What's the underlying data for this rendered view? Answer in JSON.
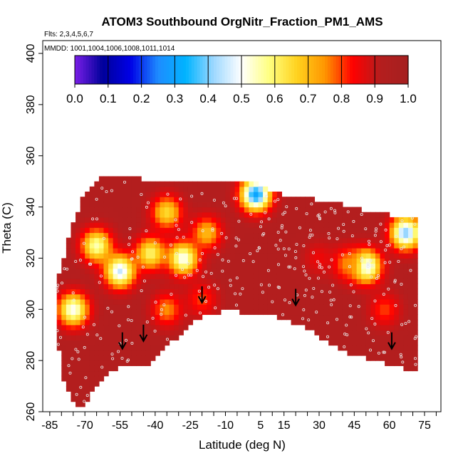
{
  "chart_data": {
    "type": "heatmap",
    "title": "ATOM3 Southbound OrgNitr_Fraction_PM1_AMS",
    "annotations": {
      "flights": "Flts: 2,3,4,5,6,7",
      "dates": "MMDD: 1001,1004,1006,1008,1011,1014"
    },
    "xlabel": "Latitude (deg N)",
    "ylabel": "Theta (C)",
    "xlim": [
      -88,
      82
    ],
    "ylim": [
      260,
      405
    ],
    "x_ticks": [
      -85,
      -70,
      -55,
      -40,
      -25,
      -10,
      5,
      15,
      30,
      45,
      60,
      75
    ],
    "y_ticks": [
      260,
      280,
      300,
      320,
      340,
      360,
      380,
      400
    ],
    "colorbar": {
      "range": [
        0.0,
        1.0
      ],
      "ticks": [
        "0.0",
        "0.1",
        "0.2",
        "0.3",
        "0.4",
        "0.5",
        "0.6",
        "0.7",
        "0.8",
        "0.9",
        "1.0"
      ],
      "colors": [
        "#7a1fe8",
        "#00009a",
        "#0000e6",
        "#1e8cff",
        "#00b4ff",
        "#9ed8ff",
        "#ffffff",
        "#ffff80",
        "#ffd21e",
        "#ff9600",
        "#ff0000",
        "#b41e1e",
        "#a52020"
      ]
    },
    "base_value": 0.92,
    "field_extent": {
      "lat": [
        -82,
        72
      ],
      "theta_top": [
        [
          -82,
          310
        ],
        [
          -76,
          330
        ],
        [
          -70,
          345
        ],
        [
          -62,
          352
        ],
        [
          -50,
          352
        ],
        [
          -45,
          350
        ],
        [
          -20,
          350
        ],
        [
          0,
          350
        ],
        [
          5,
          348
        ],
        [
          10,
          345
        ],
        [
          20,
          343
        ],
        [
          35,
          341
        ],
        [
          45,
          339
        ],
        [
          50,
          337
        ],
        [
          60,
          336
        ],
        [
          72,
          336
        ]
      ],
      "theta_bottom": [
        [
          -82,
          290
        ],
        [
          -79,
          272
        ],
        [
          -76,
          266
        ],
        [
          -73,
          263
        ],
        [
          -70,
          264
        ],
        [
          -66,
          270
        ],
        [
          -60,
          276
        ],
        [
          -55,
          278
        ],
        [
          -50,
          278
        ],
        [
          -45,
          278
        ],
        [
          -40,
          282
        ],
        [
          -33,
          288
        ],
        [
          -26,
          294
        ],
        [
          -20,
          298
        ],
        [
          -12,
          300
        ],
        [
          -5,
          300
        ],
        [
          5,
          299
        ],
        [
          12,
          298
        ],
        [
          18,
          296
        ],
        [
          26,
          293
        ],
        [
          35,
          287
        ],
        [
          45,
          283
        ],
        [
          55,
          281
        ],
        [
          62,
          279
        ],
        [
          72,
          276
        ]
      ]
    },
    "features": [
      {
        "lat": -65,
        "theta": 325,
        "value": 0.55
      },
      {
        "lat": -75,
        "theta": 300,
        "value": 0.5
      },
      {
        "lat": -55,
        "theta": 315,
        "value": 0.45
      },
      {
        "lat": -42,
        "theta": 322,
        "value": 0.6
      },
      {
        "lat": -35,
        "theta": 338,
        "value": 0.65
      },
      {
        "lat": -28,
        "theta": 320,
        "value": 0.5
      },
      {
        "lat": -18,
        "theta": 330,
        "value": 0.7
      },
      {
        "lat": -35,
        "theta": 300,
        "value": 0.75
      },
      {
        "lat": -20,
        "theta": 304,
        "value": 0.8
      },
      {
        "lat": 3,
        "theta": 345,
        "value": 0.3
      },
      {
        "lat": 50,
        "theta": 317,
        "value": 0.45
      },
      {
        "lat": 42,
        "theta": 318,
        "value": 0.75
      },
      {
        "lat": 58,
        "theta": 300,
        "value": 0.8
      },
      {
        "lat": 67,
        "theta": 330,
        "value": 0.4
      },
      {
        "lat": 30,
        "theta": 320,
        "value": 0.85
      }
    ],
    "arrows": [
      {
        "lat": -54,
        "theta": 286
      },
      {
        "lat": -45,
        "theta": 289
      },
      {
        "lat": -20,
        "theta": 304
      },
      {
        "lat": 20,
        "theta": 303
      },
      {
        "lat": 61,
        "theta": 286
      }
    ],
    "sample_points_shown": true
  }
}
